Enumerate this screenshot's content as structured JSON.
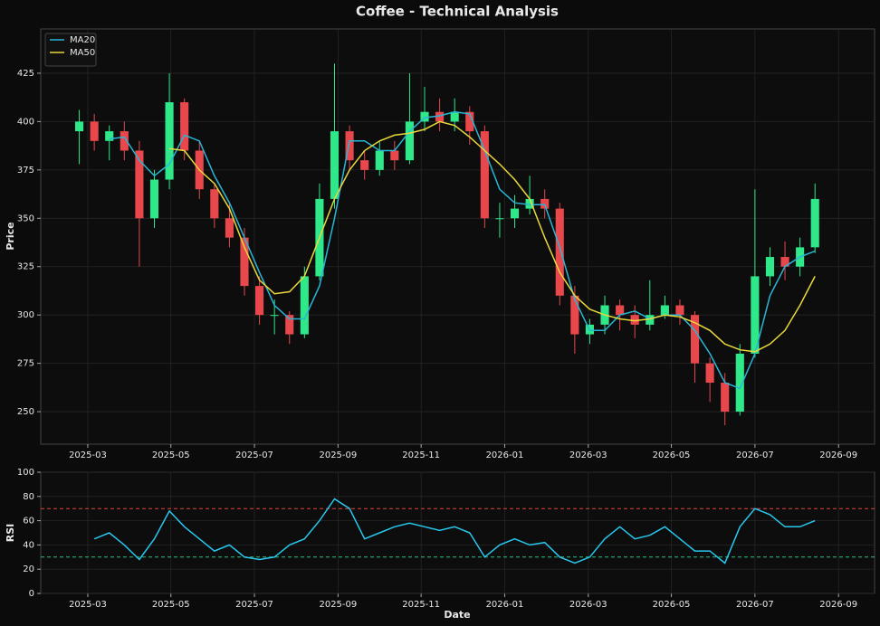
{
  "chart_data": [
    {
      "type": "candlestick",
      "title": "Coffee - Technical Analysis",
      "ylabel": "Price",
      "x": [
        2025.15,
        2025.18,
        2025.21,
        2025.24,
        2025.27,
        2025.3,
        2025.33,
        2025.36,
        2025.39,
        2025.42,
        2025.45,
        2025.48,
        2025.51,
        2025.54,
        2025.57,
        2025.6,
        2025.63,
        2025.66,
        2025.69,
        2025.72,
        2025.75,
        2025.78,
        2025.81,
        2025.84,
        2025.87,
        2025.9,
        2025.93,
        2025.96,
        2025.99,
        2026.02,
        2026.05,
        2026.08,
        2026.11,
        2026.14,
        2026.17,
        2026.2,
        2026.23,
        2026.26,
        2026.29,
        2026.32,
        2026.35,
        2026.38,
        2026.41,
        2026.44,
        2026.47,
        2026.5,
        2026.53,
        2026.56,
        2026.59,
        2026.62
      ],
      "open": [
        395,
        400,
        390,
        395,
        385,
        350,
        370,
        410,
        385,
        365,
        350,
        340,
        315,
        300,
        300,
        290,
        320,
        360,
        395,
        380,
        375,
        385,
        380,
        400,
        405,
        400,
        405,
        395,
        350,
        350,
        355,
        360,
        355,
        310,
        290,
        295,
        305,
        300,
        295,
        300,
        305,
        300,
        275,
        265,
        250,
        280,
        320,
        330,
        325,
        335
      ],
      "high": [
        406,
        404,
        398,
        400,
        390,
        375,
        425,
        412,
        390,
        368,
        358,
        345,
        320,
        308,
        302,
        325,
        368,
        430,
        398,
        385,
        390,
        390,
        425,
        418,
        412,
        412,
        408,
        398,
        358,
        362,
        372,
        365,
        358,
        315,
        298,
        310,
        308,
        305,
        318,
        310,
        308,
        302,
        278,
        270,
        285,
        365,
        335,
        338,
        340,
        368
      ],
      "low": [
        378,
        385,
        380,
        380,
        325,
        345,
        365,
        380,
        360,
        345,
        335,
        310,
        295,
        290,
        285,
        288,
        318,
        355,
        375,
        370,
        372,
        375,
        378,
        395,
        395,
        395,
        388,
        345,
        340,
        345,
        352,
        350,
        305,
        280,
        285,
        290,
        292,
        288,
        292,
        298,
        295,
        265,
        255,
        243,
        248,
        278,
        315,
        318,
        320,
        332
      ],
      "close": [
        400,
        390,
        395,
        385,
        350,
        370,
        410,
        385,
        365,
        350,
        340,
        315,
        300,
        300,
        290,
        320,
        360,
        395,
        380,
        375,
        385,
        380,
        400,
        405,
        400,
        405,
        395,
        350,
        350,
        355,
        360,
        355,
        310,
        290,
        295,
        305,
        300,
        295,
        300,
        305,
        300,
        275,
        265,
        250,
        280,
        320,
        330,
        325,
        335,
        360
      ],
      "up_color": "#2ee88a",
      "down_color": "#e8474c",
      "series": [
        {
          "name": "MA20",
          "color": "#29b6d6",
          "values": [
            null,
            null,
            391,
            392,
            380,
            372,
            378,
            393,
            390,
            372,
            358,
            340,
            322,
            305,
            298,
            298,
            315,
            350,
            390,
            390,
            385,
            385,
            395,
            402,
            403,
            405,
            404,
            385,
            365,
            358,
            357,
            357,
            335,
            308,
            292,
            292,
            300,
            302,
            298,
            300,
            300,
            292,
            280,
            265,
            262,
            280,
            310,
            325,
            330,
            333
          ]
        },
        {
          "name": "MA50",
          "color": "#e8d83a",
          "values": [
            null,
            null,
            null,
            null,
            null,
            null,
            386,
            385,
            375,
            368,
            355,
            335,
            318,
            311,
            312,
            320,
            340,
            360,
            375,
            385,
            390,
            393,
            394,
            396,
            400,
            398,
            392,
            385,
            378,
            370,
            360,
            340,
            322,
            310,
            303,
            300,
            298,
            297,
            298,
            300,
            299,
            296,
            292,
            285,
            282,
            281,
            285,
            292,
            305,
            320
          ]
        }
      ],
      "xlim": [
        2025.073,
        2026.739
      ],
      "ylim": [
        233.2,
        447.9
      ],
      "xticks": [
        {
          "value": 2025.167,
          "label": "2025-03"
        },
        {
          "value": 2025.333,
          "label": "2025-05"
        },
        {
          "value": 2025.5,
          "label": "2025-07"
        },
        {
          "value": 2025.667,
          "label": "2025-09"
        },
        {
          "value": 2025.833,
          "label": "2025-11"
        },
        {
          "value": 2026,
          "label": "2026-01"
        },
        {
          "value": 2026.167,
          "label": "2026-03"
        },
        {
          "value": 2026.333,
          "label": "2026-05"
        },
        {
          "value": 2026.5,
          "label": "2026-07"
        },
        {
          "value": 2026.667,
          "label": "2026-09"
        }
      ],
      "yticks": [
        250,
        275,
        300,
        325,
        350,
        375,
        400,
        425
      ],
      "grid": true,
      "legend": "upper left"
    },
    {
      "type": "line",
      "ylabel": "RSI",
      "xlabel": "Date",
      "x": [
        2025.15,
        2025.18,
        2025.21,
        2025.24,
        2025.27,
        2025.3,
        2025.33,
        2025.36,
        2025.39,
        2025.42,
        2025.45,
        2025.48,
        2025.51,
        2025.54,
        2025.57,
        2025.6,
        2025.63,
        2025.66,
        2025.69,
        2025.72,
        2025.75,
        2025.78,
        2025.81,
        2025.84,
        2025.87,
        2025.9,
        2025.93,
        2025.96,
        2025.99,
        2026.02,
        2026.05,
        2026.08,
        2026.11,
        2026.14,
        2026.17,
        2026.2,
        2026.23,
        2026.26,
        2026.29,
        2026.32,
        2026.35,
        2026.38,
        2026.41,
        2026.44,
        2026.47,
        2026.5,
        2026.53,
        2026.56,
        2026.59,
        2026.62
      ],
      "series": [
        {
          "color": "#29c7ee",
          "values": [
            null,
            45,
            50,
            40,
            28,
            45,
            68,
            55,
            45,
            35,
            40,
            30,
            28,
            30,
            40,
            45,
            60,
            78,
            70,
            45,
            50,
            55,
            58,
            55,
            52,
            55,
            50,
            30,
            40,
            45,
            40,
            42,
            30,
            25,
            30,
            45,
            55,
            45,
            48,
            55,
            45,
            35,
            35,
            25,
            55,
            70,
            65,
            55,
            55,
            60
          ]
        }
      ],
      "hlines": [
        {
          "value": 70,
          "color": "#e0473c"
        },
        {
          "value": 30,
          "color": "#2ec27e"
        }
      ],
      "xlim": [
        2025.073,
        2026.739
      ],
      "ylim": [
        0,
        100
      ],
      "xticks": [
        {
          "value": 2025.167,
          "label": "2025-03"
        },
        {
          "value": 2025.333,
          "label": "2025-05"
        },
        {
          "value": 2025.5,
          "label": "2025-07"
        },
        {
          "value": 2025.667,
          "label": "2025-09"
        },
        {
          "value": 2025.833,
          "label": "2025-11"
        },
        {
          "value": 2026,
          "label": "2026-01"
        },
        {
          "value": 2026.167,
          "label": "2026-03"
        },
        {
          "value": 2026.333,
          "label": "2026-05"
        },
        {
          "value": 2026.5,
          "label": "2026-07"
        },
        {
          "value": 2026.667,
          "label": "2026-09"
        }
      ],
      "yticks": [
        0,
        20,
        40,
        60,
        80,
        100
      ],
      "grid": true
    }
  ]
}
